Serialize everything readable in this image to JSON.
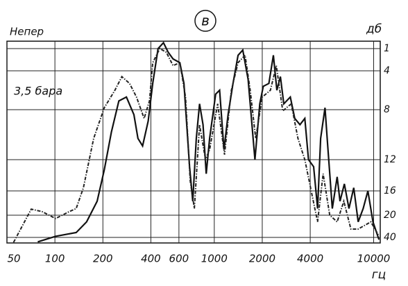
{
  "chart_data": {
    "type": "line",
    "title": "в",
    "annotation": "3,5 бара",
    "ylabel_left": "Непер",
    "ylabel_right": "дб",
    "xlabel": "гц",
    "xscale": "log",
    "xlim": [
      50,
      11000
    ],
    "xticks": [
      50,
      100,
      200,
      400,
      600,
      1000,
      2000,
      4000,
      10000
    ],
    "ylim": [
      0,
      45
    ],
    "yticks": [
      1,
      4,
      8,
      12,
      16,
      20,
      40
    ],
    "grid": true,
    "series": [
      {
        "color": "#111",
        "linestyle": "solid",
        "x": [
          78,
          101,
          136,
          158,
          184,
          204,
          226,
          252,
          281,
          313,
          332,
          355,
          385,
          411,
          444,
          480,
          514,
          551,
          608,
          645,
          700,
          733,
          771,
          808,
          850,
          890,
          935,
          1020,
          1080,
          1150,
          1220,
          1310,
          1410,
          1510,
          1630,
          1800,
          1930,
          2030,
          2200,
          2350,
          2470,
          2600,
          2730,
          3000,
          3200,
          3450,
          3700,
          3900,
          4200,
          4450,
          4650,
          4950,
          5150,
          5500,
          5900,
          6150,
          6550,
          7000,
          7500,
          8000,
          8600,
          9200,
          9900,
          10800
        ],
        "values": [
          44,
          39,
          35.6,
          26,
          17.7,
          13.3,
          9.8,
          7.1,
          6.7,
          8.4,
          10.3,
          10.9,
          8.9,
          5.3,
          1,
          0.2,
          1.5,
          2.4,
          2.9,
          5.3,
          12.9,
          17.7,
          10.3,
          7.4,
          9.2,
          13.8,
          10.3,
          6.4,
          6,
          11.2,
          8.4,
          5.3,
          1.9,
          1.2,
          4.9,
          12,
          7.4,
          5.6,
          5.3,
          1.9,
          6,
          4.6,
          7.4,
          6.7,
          8.7,
          9.2,
          8.7,
          12,
          12.9,
          18.9,
          10.3,
          7.8,
          10.9,
          18.9,
          14.2,
          17.7,
          15.1,
          18.9,
          15.6,
          26,
          18.9,
          16,
          26,
          42
        ]
      },
      {
        "color": "#222",
        "linestyle": "dashdot",
        "x": [
          55,
          71,
          83,
          101,
          123,
          136,
          151,
          175,
          204,
          238,
          263,
          294,
          325,
          363,
          392,
          411,
          455,
          500,
          551,
          608,
          660,
          706,
          750,
          808,
          880,
          935,
          1050,
          1160,
          1280,
          1410,
          1560,
          1680,
          1820,
          2000,
          2250,
          2450,
          2690,
          3040,
          3350,
          3700,
          4100,
          4450,
          4820,
          5300,
          5900,
          6500,
          7200,
          8000,
          9600,
          10800
        ],
        "values": [
          44.5,
          19,
          19.4,
          23,
          19.4,
          18.9,
          15.6,
          10.3,
          7.8,
          6,
          4.6,
          5.3,
          6.7,
          8.7,
          7.1,
          2.9,
          1,
          1.5,
          3.3,
          2.9,
          6.7,
          14.7,
          18.9,
          9.2,
          12,
          11.2,
          7.4,
          11.6,
          6,
          2.9,
          1.9,
          6,
          10.3,
          6.7,
          6,
          3.3,
          8.1,
          7.4,
          10.3,
          12,
          16.6,
          26,
          13.8,
          20,
          26,
          17.7,
          32.5,
          32.5,
          26,
          38.8
        ]
      }
    ]
  }
}
